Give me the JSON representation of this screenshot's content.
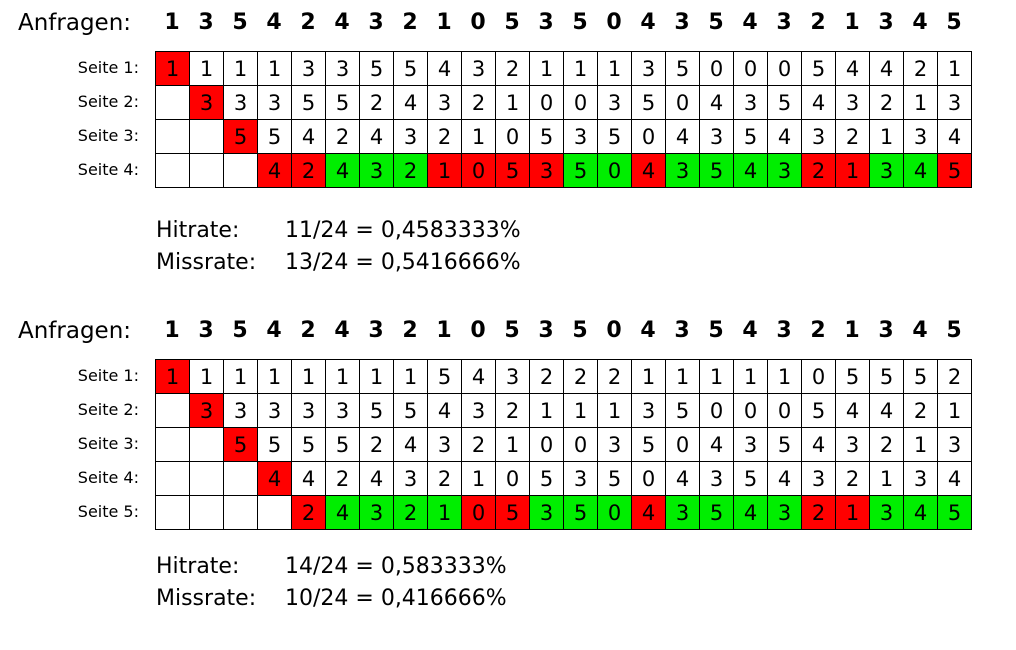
{
  "request_label": "Anfragen:",
  "colors": {
    "miss": "#ff0000",
    "hit": "#00ee00",
    "empty": "#ffffff"
  },
  "panels": [
    {
      "requests": [
        "1",
        "3",
        "5",
        "4",
        "2",
        "4",
        "3",
        "2",
        "1",
        "0",
        "5",
        "3",
        "5",
        "0",
        "4",
        "3",
        "5",
        "4",
        "3",
        "2",
        "1",
        "3",
        "4",
        "5"
      ],
      "rows": [
        {
          "label": "Seite 1:",
          "cells": [
            "1",
            "1",
            "1",
            "1",
            "3",
            "3",
            "5",
            "5",
            "4",
            "3",
            "2",
            "1",
            "1",
            "1",
            "3",
            "5",
            "0",
            "0",
            "0",
            "5",
            "4",
            "4",
            "2",
            "1"
          ],
          "states": [
            "M",
            "",
            "",
            "",
            "",
            "",
            "",
            "",
            "",
            "",
            "",
            "",
            "",
            "",
            "",
            "",
            "",
            "",
            "",
            "",
            "",
            "",
            "",
            ""
          ]
        },
        {
          "label": "Seite 2:",
          "cells": [
            "",
            "3",
            "3",
            "3",
            "5",
            "5",
            "2",
            "4",
            "3",
            "2",
            "1",
            "0",
            "0",
            "3",
            "5",
            "0",
            "4",
            "3",
            "5",
            "4",
            "3",
            "2",
            "1",
            "3"
          ],
          "states": [
            "",
            "M",
            "",
            "",
            "",
            "",
            "",
            "",
            "",
            "",
            "",
            "",
            "",
            "",
            "",
            "",
            "",
            "",
            "",
            "",
            "",
            "",
            "",
            ""
          ]
        },
        {
          "label": "Seite 3:",
          "cells": [
            "",
            "",
            "5",
            "5",
            "4",
            "2",
            "4",
            "3",
            "2",
            "1",
            "0",
            "5",
            "3",
            "5",
            "0",
            "4",
            "3",
            "5",
            "4",
            "3",
            "2",
            "1",
            "3",
            "4"
          ],
          "states": [
            "",
            "",
            "M",
            "",
            "",
            "",
            "",
            "",
            "",
            "",
            "",
            "",
            "",
            "",
            "",
            "",
            "",
            "",
            "",
            "",
            "",
            "",
            "",
            ""
          ]
        },
        {
          "label": "Seite 4:",
          "cells": [
            "",
            "",
            "",
            "4",
            "2",
            "4",
            "3",
            "2",
            "1",
            "0",
            "5",
            "3",
            "5",
            "0",
            "4",
            "3",
            "5",
            "4",
            "3",
            "2",
            "1",
            "3",
            "4",
            "5"
          ],
          "states": [
            "",
            "",
            "",
            "M",
            "M",
            "H",
            "H",
            "H",
            "M",
            "M",
            "M",
            "M",
            "H",
            "H",
            "M",
            "H",
            "H",
            "H",
            "H",
            "M",
            "M",
            "H",
            "H",
            "M"
          ]
        }
      ],
      "hitrate": {
        "label": "Hitrate:",
        "value": "11/24 = 0,4583333%"
      },
      "missrate": {
        "label": "Missrate:",
        "value": "13/24 = 0,5416666%"
      }
    },
    {
      "requests": [
        "1",
        "3",
        "5",
        "4",
        "2",
        "4",
        "3",
        "2",
        "1",
        "0",
        "5",
        "3",
        "5",
        "0",
        "4",
        "3",
        "5",
        "4",
        "3",
        "2",
        "1",
        "3",
        "4",
        "5"
      ],
      "rows": [
        {
          "label": "Seite 1:",
          "cells": [
            "1",
            "1",
            "1",
            "1",
            "1",
            "1",
            "1",
            "1",
            "5",
            "4",
            "3",
            "2",
            "2",
            "2",
            "1",
            "1",
            "1",
            "1",
            "1",
            "0",
            "5",
            "5",
            "5",
            "2"
          ],
          "states": [
            "M",
            "",
            "",
            "",
            "",
            "",
            "",
            "",
            "",
            "",
            "",
            "",
            "",
            "",
            "",
            "",
            "",
            "",
            "",
            "",
            "",
            "",
            "",
            ""
          ]
        },
        {
          "label": "Seite 2:",
          "cells": [
            "",
            "3",
            "3",
            "3",
            "3",
            "3",
            "5",
            "5",
            "4",
            "3",
            "2",
            "1",
            "1",
            "1",
            "3",
            "5",
            "0",
            "0",
            "0",
            "5",
            "4",
            "4",
            "2",
            "1"
          ],
          "states": [
            "",
            "M",
            "",
            "",
            "",
            "",
            "",
            "",
            "",
            "",
            "",
            "",
            "",
            "",
            "",
            "",
            "",
            "",
            "",
            "",
            "",
            "",
            "",
            ""
          ]
        },
        {
          "label": "Seite 3:",
          "cells": [
            "",
            "",
            "5",
            "5",
            "5",
            "5",
            "2",
            "4",
            "3",
            "2",
            "1",
            "0",
            "0",
            "3",
            "5",
            "0",
            "4",
            "3",
            "5",
            "4",
            "3",
            "2",
            "1",
            "3"
          ],
          "states": [
            "",
            "",
            "M",
            "",
            "",
            "",
            "",
            "",
            "",
            "",
            "",
            "",
            "",
            "",
            "",
            "",
            "",
            "",
            "",
            "",
            "",
            "",
            "",
            ""
          ]
        },
        {
          "label": "Seite 4:",
          "cells": [
            "",
            "",
            "",
            "4",
            "4",
            "2",
            "4",
            "3",
            "2",
            "1",
            "0",
            "5",
            "3",
            "5",
            "0",
            "4",
            "3",
            "5",
            "4",
            "3",
            "2",
            "1",
            "3",
            "4"
          ],
          "states": [
            "",
            "",
            "",
            "M",
            "",
            "",
            "",
            "",
            "",
            "",
            "",
            "",
            "",
            "",
            "",
            "",
            "",
            "",
            "",
            "",
            "",
            "",
            "",
            ""
          ]
        },
        {
          "label": "Seite 5:",
          "cells": [
            "",
            "",
            "",
            "",
            "2",
            "4",
            "3",
            "2",
            "1",
            "0",
            "5",
            "3",
            "5",
            "0",
            "4",
            "3",
            "5",
            "4",
            "3",
            "2",
            "1",
            "3",
            "4",
            "5"
          ],
          "states": [
            "",
            "",
            "",
            "",
            "M",
            "H",
            "H",
            "H",
            "H",
            "M",
            "M",
            "H",
            "H",
            "H",
            "M",
            "H",
            "H",
            "H",
            "H",
            "M",
            "M",
            "H",
            "H",
            "H"
          ]
        }
      ],
      "hitrate": {
        "label": "Hitrate:",
        "value": "14/24 = 0,583333%"
      },
      "missrate": {
        "label": "Missrate:",
        "value": "10/24 = 0,416666%"
      }
    }
  ]
}
